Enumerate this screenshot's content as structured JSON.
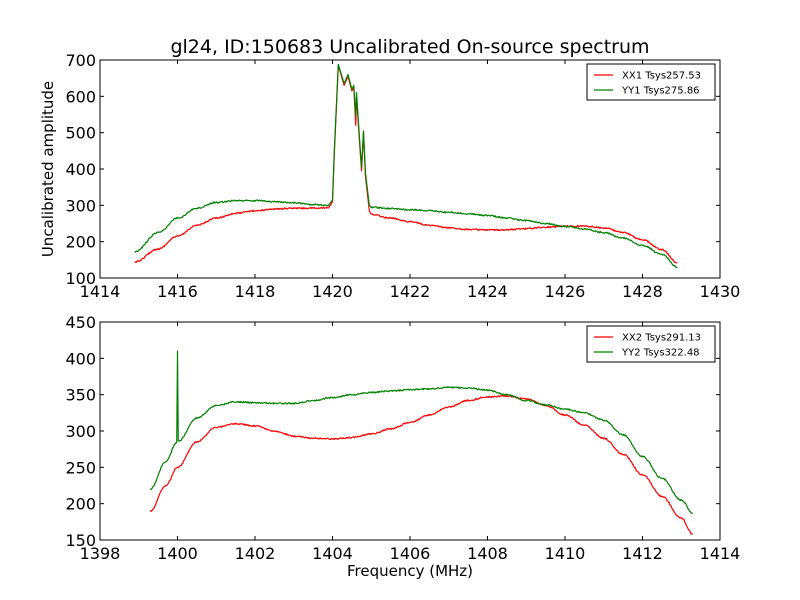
{
  "chart_data": [
    {
      "type": "line",
      "title": "gl24, ID:150683 Uncalibrated On-source spectrum",
      "xlabel": "",
      "ylabel": "Uncalibrated amplitude",
      "xlim": [
        1414,
        1430
      ],
      "ylim": [
        100,
        700
      ],
      "xticks": [
        1414,
        1416,
        1418,
        1420,
        1422,
        1424,
        1426,
        1428,
        1430
      ],
      "yticks": [
        100,
        200,
        300,
        400,
        500,
        600,
        700
      ],
      "grid": false,
      "legend_position": "top-right",
      "series": [
        {
          "name": "XX1 Tsys257.53",
          "color": "#ff0000",
          "x": [
            1414.9,
            1415.5,
            1416.0,
            1416.5,
            1417.0,
            1417.5,
            1418.0,
            1418.5,
            1419.0,
            1419.5,
            1419.9,
            1420.0,
            1420.05,
            1420.15,
            1420.3,
            1420.4,
            1420.5,
            1420.55,
            1420.6,
            1420.62,
            1420.7,
            1420.75,
            1420.8,
            1420.85,
            1420.95,
            1421.0,
            1421.5,
            1422.0,
            1422.5,
            1423.0,
            1423.5,
            1424.0,
            1424.5,
            1425.0,
            1425.5,
            1426.0,
            1426.5,
            1427.0,
            1427.5,
            1428.0,
            1428.5,
            1428.9
          ],
          "y": [
            144,
            180,
            215,
            245,
            265,
            278,
            285,
            290,
            292,
            292,
            293,
            310,
            450,
            685,
            630,
            655,
            615,
            625,
            520,
            600,
            470,
            395,
            500,
            380,
            285,
            275,
            265,
            255,
            245,
            238,
            234,
            232,
            233,
            236,
            240,
            243,
            243,
            238,
            225,
            205,
            178,
            142
          ]
        },
        {
          "name": "YY1 Tsys275.86",
          "color": "#008000",
          "x": [
            1414.9,
            1415.5,
            1416.0,
            1416.5,
            1417.0,
            1417.5,
            1418.0,
            1418.5,
            1419.0,
            1419.5,
            1419.9,
            1420.0,
            1420.05,
            1420.15,
            1420.3,
            1420.4,
            1420.5,
            1420.55,
            1420.6,
            1420.62,
            1420.7,
            1420.75,
            1420.8,
            1420.85,
            1420.95,
            1421.0,
            1421.5,
            1422.0,
            1422.5,
            1423.0,
            1423.5,
            1424.0,
            1424.5,
            1425.0,
            1425.5,
            1426.0,
            1426.5,
            1427.0,
            1427.5,
            1428.0,
            1428.5,
            1428.9
          ],
          "y": [
            172,
            225,
            265,
            292,
            308,
            313,
            313,
            310,
            307,
            302,
            300,
            315,
            460,
            688,
            635,
            660,
            620,
            630,
            545,
            610,
            480,
            405,
            505,
            390,
            300,
            295,
            291,
            288,
            285,
            281,
            277,
            272,
            265,
            258,
            250,
            242,
            235,
            225,
            210,
            190,
            165,
            130
          ]
        }
      ]
    },
    {
      "type": "line",
      "title": "",
      "xlabel": "Frequency (MHz)",
      "ylabel": "",
      "xlim": [
        1398,
        1414
      ],
      "ylim": [
        150,
        450
      ],
      "xticks": [
        1398,
        1400,
        1402,
        1404,
        1406,
        1408,
        1410,
        1412,
        1414
      ],
      "yticks": [
        150,
        200,
        250,
        300,
        350,
        400,
        450
      ],
      "grid": false,
      "legend_position": "top-right",
      "series": [
        {
          "name": "XX2 Tsys291.13",
          "color": "#ff0000",
          "x": [
            1399.3,
            1399.7,
            1400.0,
            1400.5,
            1401.0,
            1401.5,
            1402.0,
            1402.5,
            1403.0,
            1403.5,
            1404.0,
            1404.5,
            1405.0,
            1405.5,
            1406.0,
            1406.5,
            1407.0,
            1407.5,
            1408.0,
            1408.5,
            1409.0,
            1409.5,
            1410.0,
            1410.5,
            1411.0,
            1411.5,
            1412.0,
            1412.5,
            1413.0,
            1413.3
          ],
          "y": [
            190,
            225,
            250,
            285,
            305,
            310,
            307,
            300,
            293,
            290,
            289,
            291,
            296,
            303,
            312,
            322,
            333,
            342,
            347,
            348,
            344,
            335,
            322,
            308,
            290,
            268,
            240,
            210,
            180,
            158
          ]
        },
        {
          "name": "YY2 Tsys322.48",
          "color": "#008000",
          "x": [
            1399.3,
            1399.7,
            1399.98,
            1400.0,
            1400.02,
            1400.5,
            1401.0,
            1401.5,
            1402.0,
            1402.5,
            1403.0,
            1403.5,
            1404.0,
            1404.5,
            1405.0,
            1405.5,
            1406.0,
            1406.5,
            1407.0,
            1407.5,
            1408.0,
            1408.5,
            1409.0,
            1409.5,
            1410.0,
            1410.5,
            1411.0,
            1411.5,
            1412.0,
            1412.5,
            1413.0,
            1413.3
          ],
          "y": [
            220,
            258,
            284,
            410,
            286,
            318,
            335,
            340,
            339,
            338,
            338,
            342,
            346,
            350,
            353,
            355,
            357,
            358,
            360,
            359,
            356,
            350,
            342,
            336,
            330,
            325,
            315,
            295,
            265,
            235,
            205,
            187
          ]
        }
      ]
    }
  ]
}
